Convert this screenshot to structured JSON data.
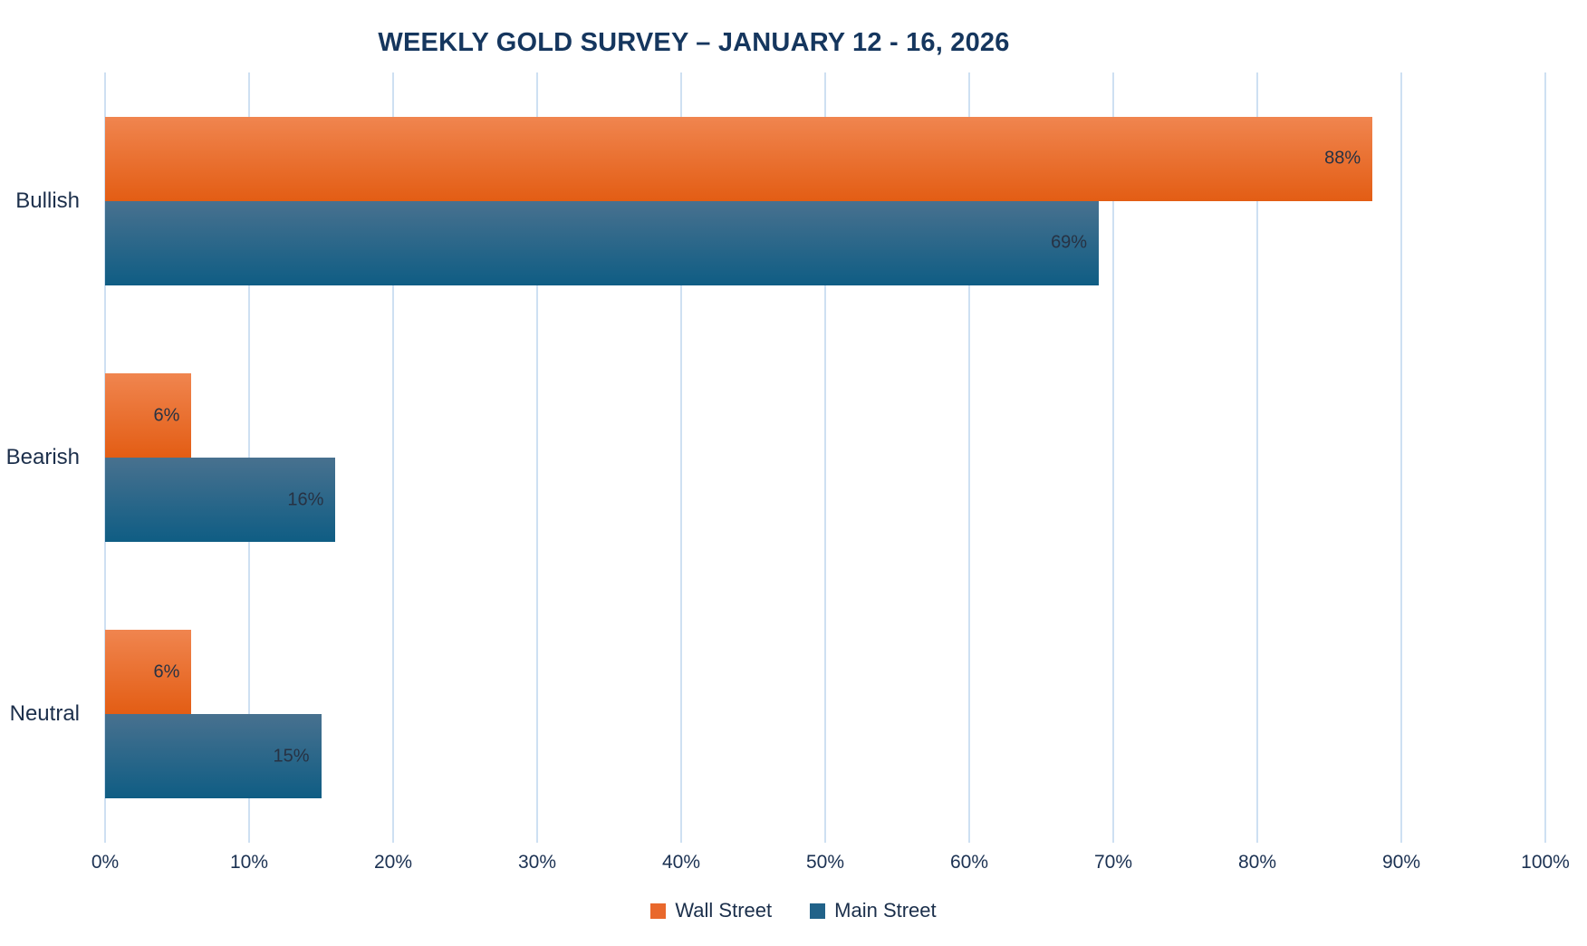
{
  "chart_data": {
    "type": "bar",
    "orientation": "horizontal",
    "title": "WEEKLY GOLD SURVEY – JANUARY 12 - 16, 2026",
    "categories": [
      "Bullish",
      "Bearish",
      "Neutral"
    ],
    "series": [
      {
        "name": "Wall Street",
        "values": [
          88,
          6,
          6
        ],
        "color_top": "#F0854F",
        "color_bottom": "#E35D14",
        "legend_color": "#E9682C"
      },
      {
        "name": "Main Street",
        "values": [
          69,
          16,
          15
        ],
        "color_top": "#48718F",
        "color_bottom": "#0F5D84",
        "legend_color": "#216289"
      }
    ],
    "value_suffix": "%",
    "xlim": [
      0,
      100
    ],
    "x_tick_values": [
      0,
      10,
      20,
      30,
      40,
      50,
      60,
      70,
      80,
      90,
      100
    ],
    "x_ticks": [
      "0%",
      "10%",
      "20%",
      "30%",
      "40%",
      "50%",
      "60%",
      "70%",
      "80%",
      "90%",
      "100%"
    ],
    "grid": "vertical",
    "legend_position": "bottom",
    "data_label_placement": "inside-end"
  },
  "colors": {
    "title_text": "#15365E",
    "category_text": "#1C2F4B",
    "tick_text": "#1B3152",
    "data_label_text": "#273243",
    "legend_text": "#1B2F4B",
    "gridline": "#CEE0F2",
    "background": "#FFFFFF"
  }
}
